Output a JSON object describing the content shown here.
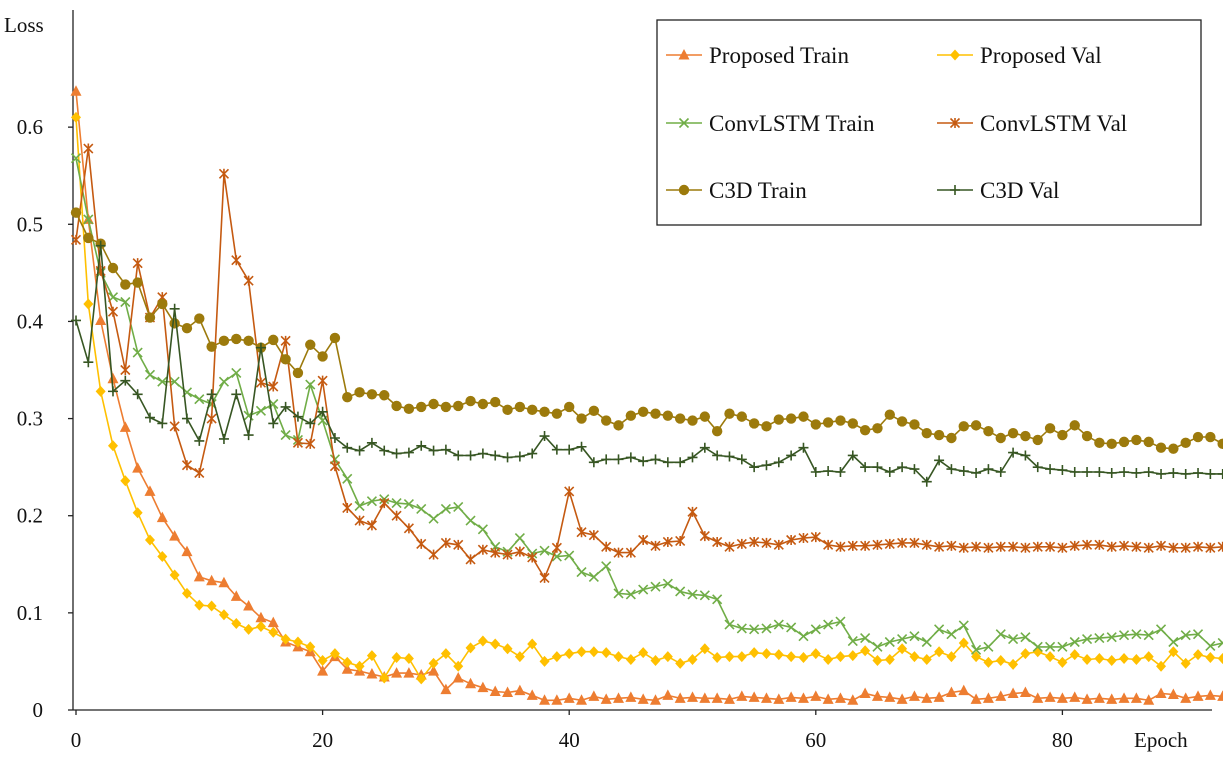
{
  "chart_data": {
    "type": "line",
    "title": "",
    "xlabel": "Epoch",
    "ylabel": "Loss",
    "xlim": [
      0,
      93
    ],
    "ylim": [
      0,
      0.7
    ],
    "xticks": [
      0,
      20,
      40,
      60,
      80
    ],
    "yticks": [
      0,
      0.1,
      0.2,
      0.3,
      0.4,
      0.5,
      0.6
    ],
    "xtick_labels": [
      "0",
      "20",
      "40",
      "60",
      "80"
    ],
    "ytick_labels": [
      "0",
      "0.1",
      "0.2",
      "0.3",
      "0.4",
      "0.5",
      "0.6"
    ],
    "grid": false,
    "legend_position": "top-right",
    "legend_columns": 2,
    "series": [
      {
        "name": "Proposed Train",
        "color": "#ED7D31",
        "marker": "triangle",
        "values": [
          0.637,
          0.505,
          0.401,
          0.341,
          0.291,
          0.249,
          0.225,
          0.198,
          0.179,
          0.163,
          0.137,
          0.133,
          0.131,
          0.117,
          0.107,
          0.095,
          0.09,
          0.07,
          0.065,
          0.06,
          0.04,
          0.055,
          0.042,
          0.04,
          0.037,
          0.034,
          0.038,
          0.038,
          0.036,
          0.04,
          0.021,
          0.033,
          0.027,
          0.023,
          0.019,
          0.018,
          0.02,
          0.015,
          0.01,
          0.01,
          0.012,
          0.01,
          0.014,
          0.011,
          0.012,
          0.013,
          0.011,
          0.01,
          0.015,
          0.012,
          0.013,
          0.012,
          0.012,
          0.011,
          0.014,
          0.013,
          0.012,
          0.011,
          0.013,
          0.012,
          0.014,
          0.011,
          0.012,
          0.01,
          0.017,
          0.014,
          0.013,
          0.011,
          0.014,
          0.012,
          0.013,
          0.018,
          0.02,
          0.011,
          0.012,
          0.014,
          0.017,
          0.018,
          0.012,
          0.013,
          0.012,
          0.013,
          0.011,
          0.012,
          0.011,
          0.012,
          0.012,
          0.01,
          0.017,
          0.016,
          0.012,
          0.014,
          0.015,
          0.014
        ]
      },
      {
        "name": "Proposed Val",
        "color": "#FFC000",
        "marker": "diamond",
        "values": [
          0.61,
          0.418,
          0.328,
          0.272,
          0.236,
          0.203,
          0.175,
          0.158,
          0.139,
          0.12,
          0.108,
          0.107,
          0.098,
          0.089,
          0.083,
          0.086,
          0.08,
          0.073,
          0.07,
          0.065,
          0.051,
          0.058,
          0.049,
          0.045,
          0.056,
          0.033,
          0.054,
          0.053,
          0.032,
          0.048,
          0.058,
          0.045,
          0.064,
          0.071,
          0.068,
          0.063,
          0.055,
          0.068,
          0.05,
          0.055,
          0.058,
          0.06,
          0.06,
          0.059,
          0.055,
          0.052,
          0.059,
          0.051,
          0.055,
          0.048,
          0.052,
          0.063,
          0.054,
          0.055,
          0.055,
          0.059,
          0.058,
          0.057,
          0.055,
          0.054,
          0.058,
          0.052,
          0.055,
          0.056,
          0.061,
          0.051,
          0.052,
          0.063,
          0.055,
          0.052,
          0.06,
          0.055,
          0.069,
          0.055,
          0.049,
          0.051,
          0.047,
          0.058,
          0.06,
          0.055,
          0.049,
          0.057,
          0.052,
          0.053,
          0.051,
          0.053,
          0.052,
          0.055,
          0.045,
          0.06,
          0.048,
          0.057,
          0.054,
          0.053
        ]
      },
      {
        "name": "ConvLSTM Train",
        "color": "#70AD47",
        "marker": "x",
        "values": [
          0.568,
          0.505,
          0.45,
          0.425,
          0.42,
          0.368,
          0.345,
          0.338,
          0.338,
          0.327,
          0.32,
          0.315,
          0.338,
          0.347,
          0.303,
          0.308,
          0.315,
          0.283,
          0.278,
          0.335,
          0.298,
          0.258,
          0.238,
          0.21,
          0.215,
          0.217,
          0.213,
          0.212,
          0.207,
          0.197,
          0.207,
          0.209,
          0.195,
          0.186,
          0.168,
          0.163,
          0.177,
          0.161,
          0.164,
          0.158,
          0.159,
          0.142,
          0.137,
          0.148,
          0.12,
          0.119,
          0.124,
          0.127,
          0.13,
          0.122,
          0.119,
          0.118,
          0.114,
          0.088,
          0.084,
          0.083,
          0.084,
          0.088,
          0.085,
          0.076,
          0.083,
          0.088,
          0.091,
          0.071,
          0.074,
          0.065,
          0.07,
          0.073,
          0.076,
          0.07,
          0.083,
          0.078,
          0.087,
          0.062,
          0.065,
          0.078,
          0.073,
          0.075,
          0.065,
          0.065,
          0.065,
          0.07,
          0.073,
          0.074,
          0.075,
          0.077,
          0.078,
          0.077,
          0.083,
          0.07,
          0.077,
          0.078,
          0.066,
          0.069
        ]
      },
      {
        "name": "ConvLSTM Val",
        "color": "#C55A11",
        "marker": "star",
        "values": [
          0.484,
          0.578,
          0.452,
          0.41,
          0.35,
          0.46,
          0.404,
          0.425,
          0.292,
          0.252,
          0.244,
          0.3,
          0.552,
          0.463,
          0.442,
          0.337,
          0.333,
          0.38,
          0.275,
          0.274,
          0.339,
          0.251,
          0.208,
          0.195,
          0.19,
          0.213,
          0.2,
          0.187,
          0.171,
          0.16,
          0.172,
          0.17,
          0.155,
          0.165,
          0.162,
          0.16,
          0.163,
          0.157,
          0.136,
          0.167,
          0.225,
          0.183,
          0.18,
          0.168,
          0.162,
          0.162,
          0.175,
          0.169,
          0.173,
          0.174,
          0.204,
          0.179,
          0.173,
          0.168,
          0.171,
          0.173,
          0.172,
          0.17,
          0.175,
          0.177,
          0.178,
          0.17,
          0.168,
          0.169,
          0.169,
          0.17,
          0.171,
          0.172,
          0.172,
          0.17,
          0.168,
          0.169,
          0.167,
          0.168,
          0.167,
          0.168,
          0.168,
          0.167,
          0.168,
          0.168,
          0.167,
          0.169,
          0.17,
          0.17,
          0.168,
          0.169,
          0.168,
          0.167,
          0.169,
          0.167,
          0.167,
          0.168,
          0.167,
          0.168
        ]
      },
      {
        "name": "C3D Train",
        "color": "#9C7A0C",
        "marker": "circle",
        "values": [
          0.512,
          0.486,
          0.48,
          0.455,
          0.438,
          0.44,
          0.404,
          0.418,
          0.398,
          0.393,
          0.403,
          0.374,
          0.38,
          0.382,
          0.38,
          0.373,
          0.381,
          0.361,
          0.347,
          0.376,
          0.364,
          0.383,
          0.322,
          0.327,
          0.325,
          0.324,
          0.313,
          0.31,
          0.312,
          0.315,
          0.312,
          0.313,
          0.318,
          0.315,
          0.317,
          0.309,
          0.312,
          0.309,
          0.307,
          0.305,
          0.312,
          0.3,
          0.308,
          0.298,
          0.293,
          0.303,
          0.307,
          0.305,
          0.303,
          0.3,
          0.298,
          0.302,
          0.287,
          0.305,
          0.302,
          0.295,
          0.292,
          0.299,
          0.3,
          0.302,
          0.294,
          0.296,
          0.298,
          0.295,
          0.288,
          0.29,
          0.304,
          0.297,
          0.294,
          0.285,
          0.283,
          0.28,
          0.292,
          0.293,
          0.287,
          0.28,
          0.285,
          0.282,
          0.278,
          0.29,
          0.283,
          0.293,
          0.282,
          0.275,
          0.274,
          0.276,
          0.278,
          0.276,
          0.27,
          0.269,
          0.275,
          0.281,
          0.281,
          0.274
        ]
      },
      {
        "name": "C3D Val",
        "color": "#375623",
        "marker": "plus",
        "values": [
          0.401,
          0.358,
          0.478,
          0.328,
          0.339,
          0.325,
          0.301,
          0.295,
          0.413,
          0.3,
          0.277,
          0.325,
          0.279,
          0.325,
          0.283,
          0.373,
          0.295,
          0.312,
          0.302,
          0.295,
          0.307,
          0.28,
          0.27,
          0.267,
          0.275,
          0.267,
          0.264,
          0.265,
          0.272,
          0.267,
          0.268,
          0.262,
          0.262,
          0.264,
          0.262,
          0.26,
          0.261,
          0.264,
          0.282,
          0.268,
          0.268,
          0.271,
          0.255,
          0.258,
          0.258,
          0.26,
          0.256,
          0.258,
          0.255,
          0.255,
          0.26,
          0.27,
          0.262,
          0.261,
          0.258,
          0.25,
          0.252,
          0.255,
          0.262,
          0.27,
          0.245,
          0.246,
          0.245,
          0.262,
          0.25,
          0.25,
          0.245,
          0.25,
          0.248,
          0.235,
          0.257,
          0.248,
          0.246,
          0.244,
          0.248,
          0.245,
          0.265,
          0.262,
          0.25,
          0.248,
          0.247,
          0.245,
          0.245,
          0.245,
          0.244,
          0.245,
          0.244,
          0.245,
          0.243,
          0.244,
          0.243,
          0.244,
          0.243,
          0.243
        ]
      }
    ]
  }
}
